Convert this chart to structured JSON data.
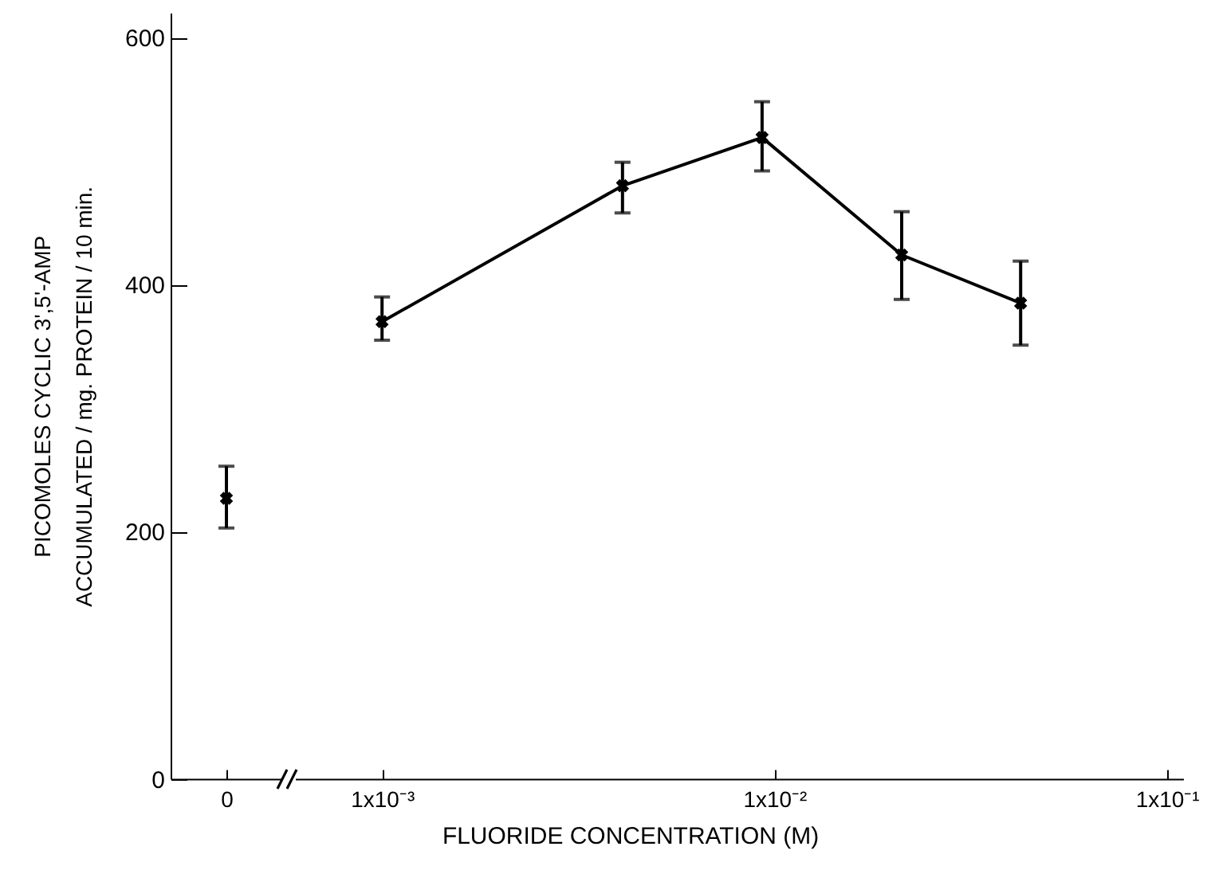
{
  "chart_data": [
    {
      "type": "scatter",
      "ylabel": "PICOMOLES CYCLIC 3',5'-AMP\nACCUMULATED / mg. PROTEIN / 10 min.",
      "categories": [
        "0"
      ],
      "values": [
        227
      ],
      "errors": [
        [
          203,
          253
        ]
      ],
      "color": "#000000",
      "ylim": [
        0,
        620
      ],
      "yticks": [
        0,
        200,
        400,
        600
      ],
      "marker": "cross",
      "grid": false
    },
    {
      "type": "line",
      "xlabel": "FLUORIDE CONCENTRATION (M)",
      "x": [
        0.001,
        0.0041,
        0.0093,
        0.0211,
        0.0424
      ],
      "values": [
        370,
        480,
        519,
        424,
        385
      ],
      "errors": [
        [
          355,
          390
        ],
        [
          458,
          499
        ],
        [
          492,
          548
        ],
        [
          388,
          459
        ],
        [
          351,
          419
        ]
      ],
      "color": "#000000",
      "log": "x",
      "xlim": [
        0.0006,
        0.11
      ],
      "xticks": [
        {
          "value": 0.001,
          "label": "1x10⁻³"
        },
        {
          "value": 0.01,
          "label": "1x10⁻²"
        },
        {
          "value": 0.1,
          "label": "1x10⁻¹"
        }
      ],
      "ylim": [
        0,
        620
      ],
      "tick_labels": "x",
      "marker": "cross",
      "line_style": "solid",
      "grid": false
    }
  ]
}
